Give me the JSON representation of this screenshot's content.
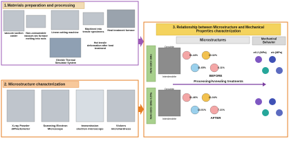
{
  "panel1": {
    "title": "1.Materials preparation and processing",
    "items": [
      {
        "lines": [
          "vacuum suction",
          "caster"
        ]
      },
      {
        "lines": [
          "Non-consumable",
          "vacuum arc furnace",
          "melting into rods"
        ]
      },
      {
        "lines": [
          "Linear cutting machine"
        ]
      },
      {
        "lines": [
          "Machined into",
          "tensile specimens"
        ]
      },
      {
        "lines": [
          "Heat treatment furnace"
        ]
      }
    ],
    "notes": [
      {
        "lines": [
          "Hot tensile",
          "deformation after heat",
          "treatment"
        ]
      },
      {
        "lines": [
          "Gleeble Thermal",
          "Simulator System"
        ]
      }
    ]
  },
  "panel2": {
    "title": "2. Microstructure characterization",
    "items": [
      {
        "lines": [
          "X-ray Powder",
          "diffractometer"
        ]
      },
      {
        "lines": [
          "Scanning Electron",
          "Microscope"
        ]
      },
      {
        "lines": [
          "transmission",
          "electron microscope"
        ]
      },
      {
        "lines": [
          "Vickers",
          "microhardness"
        ]
      }
    ]
  },
  "panel3": {
    "title_lines": [
      "3. Relationship between Microstructure and Mechanical",
      "Properties characterization"
    ],
    "headers": [
      {
        "lines": [
          "Microstructures"
        ]
      },
      {
        "lines": [
          "Mechanical",
          "Behavior"
        ]
      }
    ],
    "rows": [
      {
        "alloy": "NiAl-33Cr-3Mo",
        "state": "BEFORE",
        "phase_labels": [
          "Dendrite",
          "Interdendrite"
        ],
        "percentages": [
          "51.44%",
          "10.32%",
          "11.65%",
          "6.11%"
        ]
      },
      {
        "alloy": "NiAl-33Cr-3Mo-0.5Ta",
        "state": "AFTER",
        "phase_labels": [
          "Dendrite",
          "Interdendrite"
        ],
        "percentages": [
          "31.46%",
          "21.04%",
          "13.01%",
          "7.21%"
        ]
      }
    ],
    "process": "Processing/Annealing treatments",
    "properties": [
      "σ0.2 (MPa)",
      "σb (MPa)"
    ]
  }
}
